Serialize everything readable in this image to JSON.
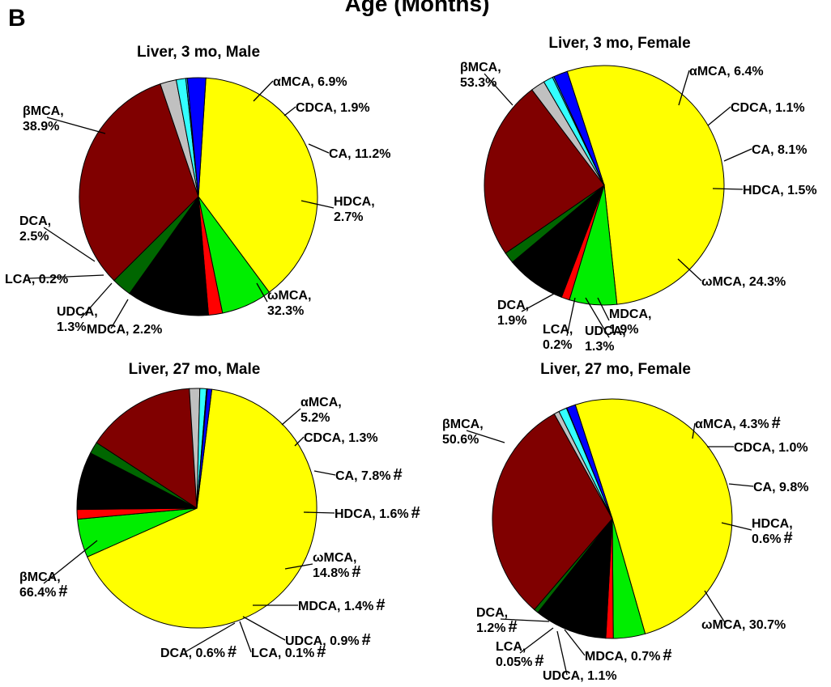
{
  "figure": {
    "panel_letter": "B",
    "title": "Age (Months)"
  },
  "colors": {
    "βMCA": "#ffff00",
    "αMCA": "#00ee00",
    "CDCA": "#ff0000",
    "CA": "#000000",
    "HDCA": "#006600",
    "ωMCA": "#800000",
    "MDCA": "#c0c0c0",
    "UDCA": "#33ffff",
    "LCA": "#33ccff",
    "DCA": "#0000ff"
  },
  "chart_data": [
    {
      "type": "pie",
      "title": "Liver, 3 mo, Male",
      "slices": [
        {
          "name": "βMCA",
          "value": 38.9,
          "label_lines": [
            "βMCA,",
            "38.9%"
          ]
        },
        {
          "name": "αMCA",
          "value": 6.9,
          "label_lines": [
            "αMCA, 6.9%"
          ]
        },
        {
          "name": "CDCA",
          "value": 1.9,
          "label_lines": [
            "CDCA, 1.9%"
          ]
        },
        {
          "name": "CA",
          "value": 11.2,
          "label_lines": [
            "CA, 11.2%"
          ]
        },
        {
          "name": "HDCA",
          "value": 2.7,
          "label_lines": [
            "HDCA,",
            "2.7%"
          ]
        },
        {
          "name": "ωMCA",
          "value": 32.3,
          "label_lines": [
            "ωMCA,",
            "32.3%"
          ]
        },
        {
          "name": "MDCA",
          "value": 2.2,
          "label_lines": [
            "MDCA, 2.2%"
          ]
        },
        {
          "name": "UDCA",
          "value": 1.3,
          "label_lines": [
            "UDCA,",
            "1.3%"
          ]
        },
        {
          "name": "LCA",
          "value": 0.2,
          "label_lines": [
            "LCA, 0.2%"
          ]
        },
        {
          "name": "DCA",
          "value": 2.5,
          "label_lines": [
            "DCA,",
            "2.5%"
          ]
        }
      ]
    },
    {
      "type": "pie",
      "title": "Liver, 3 mo, Female",
      "slices": [
        {
          "name": "βMCA",
          "value": 53.3,
          "label_lines": [
            "βMCA,",
            "53.3%"
          ]
        },
        {
          "name": "αMCA",
          "value": 6.4,
          "label_lines": [
            "αMCA, 6.4%"
          ]
        },
        {
          "name": "CDCA",
          "value": 1.1,
          "label_lines": [
            "CDCA, 1.1%"
          ]
        },
        {
          "name": "CA",
          "value": 8.1,
          "label_lines": [
            "CA, 8.1%"
          ]
        },
        {
          "name": "HDCA",
          "value": 1.5,
          "label_lines": [
            "HDCA, 1.5%"
          ]
        },
        {
          "name": "ωMCA",
          "value": 24.3,
          "label_lines": [
            "ωMCA, 24.3%"
          ]
        },
        {
          "name": "MDCA",
          "value": 1.9,
          "label_lines": [
            "MDCA,",
            "1.9%"
          ]
        },
        {
          "name": "UDCA",
          "value": 1.3,
          "label_lines": [
            "UDCA,",
            "1.3%"
          ]
        },
        {
          "name": "LCA",
          "value": 0.2,
          "label_lines": [
            "LCA,",
            "0.2%"
          ]
        },
        {
          "name": "DCA",
          "value": 1.9,
          "label_lines": [
            "DCA,",
            "1.9%"
          ]
        }
      ]
    },
    {
      "type": "pie",
      "title": "Liver, 27 mo, Male",
      "slices": [
        {
          "name": "βMCA",
          "value": 66.4,
          "label_lines": [
            "βMCA,",
            "66.4%"
          ],
          "mark": "#"
        },
        {
          "name": "αMCA",
          "value": 5.2,
          "label_lines": [
            "αMCA,",
            "5.2%"
          ]
        },
        {
          "name": "CDCA",
          "value": 1.3,
          "label_lines": [
            "CDCA, 1.3%"
          ]
        },
        {
          "name": "CA",
          "value": 7.8,
          "label_lines": [
            "CA, 7.8%"
          ],
          "mark": "#"
        },
        {
          "name": "HDCA",
          "value": 1.6,
          "label_lines": [
            "HDCA, 1.6%"
          ],
          "mark": "#"
        },
        {
          "name": "ωMCA",
          "value": 14.8,
          "label_lines": [
            "ωMCA,",
            "14.8%"
          ],
          "mark": "#"
        },
        {
          "name": "MDCA",
          "value": 1.4,
          "label_lines": [
            "MDCA, 1.4%"
          ],
          "mark": "#"
        },
        {
          "name": "UDCA",
          "value": 0.9,
          "label_lines": [
            "UDCA, 0.9%"
          ],
          "mark": "#"
        },
        {
          "name": "LCA",
          "value": 0.1,
          "label_lines": [
            "LCA, 0.1%"
          ],
          "mark": "#"
        },
        {
          "name": "DCA",
          "value": 0.6,
          "label_lines": [
            "DCA, 0.6%"
          ],
          "mark": "#"
        }
      ]
    },
    {
      "type": "pie",
      "title": "Liver, 27 mo, Female",
      "slices": [
        {
          "name": "βMCA",
          "value": 50.6,
          "label_lines": [
            "βMCA,",
            "50.6%"
          ]
        },
        {
          "name": "αMCA",
          "value": 4.3,
          "label_lines": [
            "αMCA, 4.3%"
          ],
          "mark": "#"
        },
        {
          "name": "CDCA",
          "value": 1.0,
          "label_lines": [
            "CDCA, 1.0%"
          ]
        },
        {
          "name": "CA",
          "value": 9.8,
          "label_lines": [
            "CA, 9.8%"
          ]
        },
        {
          "name": "HDCA",
          "value": 0.6,
          "label_lines": [
            "HDCA,",
            "0.6%"
          ],
          "mark": "#"
        },
        {
          "name": "ωMCA",
          "value": 30.7,
          "label_lines": [
            "ωMCA, 30.7%"
          ]
        },
        {
          "name": "MDCA",
          "value": 0.7,
          "label_lines": [
            "MDCA, 0.7%"
          ],
          "mark": "#"
        },
        {
          "name": "UDCA",
          "value": 1.1,
          "label_lines": [
            "UDCA, 1.1%"
          ]
        },
        {
          "name": "LCA",
          "value": 0.05,
          "label_lines": [
            "LCA,",
            "0.05%"
          ],
          "mark": "#"
        },
        {
          "name": "DCA",
          "value": 1.2,
          "label_lines": [
            "DCA,",
            "1.2%"
          ],
          "mark": "#"
        }
      ]
    }
  ]
}
